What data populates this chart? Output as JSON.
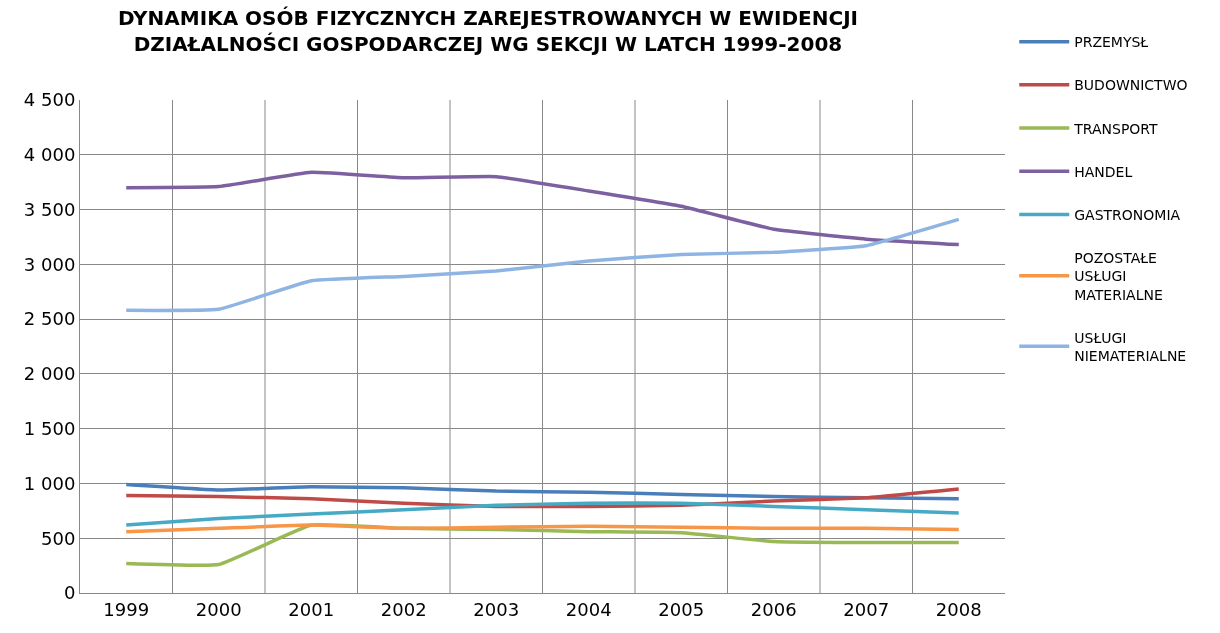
{
  "chart_data": {
    "type": "line",
    "title": "DYNAMIKA OSÓB FIZYCZNYCH ZAREJESTROWANYCH W EWIDENCJI DZIAŁALNOŚCI GOSPODARCZEJ WG SEKCJI W LATCH 1999-2008",
    "categories": [
      "1999",
      "2000",
      "2001",
      "2002",
      "2003",
      "2004",
      "2005",
      "2006",
      "2007",
      "2008"
    ],
    "series": [
      {
        "name": "PRZEMYSŁ",
        "color": "#4a7ebb",
        "values": [
          990,
          940,
          970,
          960,
          930,
          920,
          900,
          880,
          870,
          860
        ]
      },
      {
        "name": "BUDOWNICTWO",
        "color": "#be4b48",
        "values": [
          890,
          880,
          860,
          820,
          790,
          790,
          800,
          840,
          870,
          950
        ]
      },
      {
        "name": "TRANSPORT",
        "color": "#98b954",
        "values": [
          270,
          260,
          620,
          590,
          580,
          560,
          550,
          470,
          460,
          460
        ]
      },
      {
        "name": "HANDEL",
        "color": "#7d60a0",
        "values": [
          3700,
          3710,
          3840,
          3790,
          3800,
          3670,
          3530,
          3320,
          3230,
          3180
        ]
      },
      {
        "name": "GASTRONOMIA",
        "color": "#46aac5",
        "values": [
          620,
          680,
          720,
          760,
          800,
          820,
          820,
          790,
          760,
          730
        ]
      },
      {
        "name": "POZOSTAŁE USŁUGI MATERIALNE",
        "color": "#f79646",
        "values": [
          560,
          590,
          620,
          590,
          600,
          610,
          600,
          590,
          590,
          580
        ]
      },
      {
        "name": "USŁUGI NIEMATERIALNE",
        "color": "#8eb4e3",
        "values": [
          2580,
          2590,
          2850,
          2890,
          2940,
          3030,
          3090,
          3110,
          3170,
          3410
        ]
      }
    ],
    "ylim": [
      0,
      4500
    ],
    "yticks": [
      {
        "value": 0,
        "label": "0"
      },
      {
        "value": 500,
        "label": "500"
      },
      {
        "value": 1000,
        "label": "1 000"
      },
      {
        "value": 1500,
        "label": "1 500"
      },
      {
        "value": 2000,
        "label": "2 000"
      },
      {
        "value": 2500,
        "label": "2 500"
      },
      {
        "value": 3000,
        "label": "3 000"
      },
      {
        "value": 3500,
        "label": "3 500"
      },
      {
        "value": 4000,
        "label": "4 000"
      },
      {
        "value": 4500,
        "label": "4 500"
      }
    ],
    "grid": true,
    "legend": "right",
    "marker": "none",
    "line_style": "solid"
  }
}
